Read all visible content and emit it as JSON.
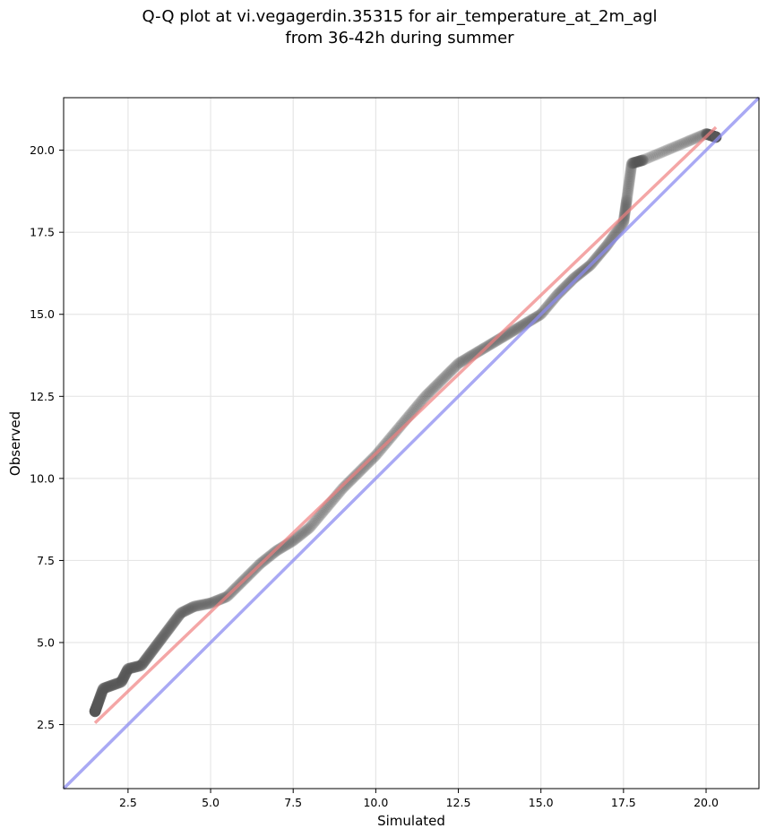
{
  "chart_data": {
    "type": "scatter",
    "title_lines": [
      "Q-Q plot at vi.vegagerdin.35315 for air_temperature_at_2m_agl",
      "from 36-42h during summer"
    ],
    "xlabel": "Simulated",
    "ylabel": "Observed",
    "xlim": [
      0.55,
      21.6
    ],
    "ylim": [
      0.55,
      21.6
    ],
    "x_ticks": [
      2.5,
      5.0,
      7.5,
      10.0,
      12.5,
      15.0,
      17.5,
      20.0
    ],
    "y_ticks": [
      2.5,
      5.0,
      7.5,
      10.0,
      12.5,
      15.0,
      17.5,
      20.0
    ],
    "x_tick_labels": [
      "2.5",
      "5.0",
      "7.5",
      "10.0",
      "12.5",
      "15.0",
      "17.5",
      "20.0"
    ],
    "y_tick_labels": [
      "2.5",
      "5.0",
      "7.5",
      "10.0",
      "12.5",
      "15.0",
      "17.5",
      "20.0"
    ],
    "grid": true,
    "colors": {
      "points": "#555555",
      "fit_line": "#f08080",
      "identity_line": "#8c8cf0",
      "grid": "#e6e6e6"
    },
    "fit_line": {
      "x": [
        1.5,
        20.3
      ],
      "y": [
        2.55,
        20.7
      ]
    },
    "identity_line": {
      "x": [
        0.55,
        21.6
      ],
      "y": [
        0.55,
        21.6
      ]
    },
    "quantile_anchors": {
      "x": [
        1.5,
        1.75,
        2.3,
        2.5,
        2.9,
        3.2,
        3.5,
        3.8,
        4.1,
        4.5,
        5.0,
        5.5,
        6.0,
        6.5,
        7.0,
        7.5,
        8.0,
        8.5,
        9.0,
        9.5,
        10.0,
        10.5,
        11.0,
        11.5,
        12.0,
        12.5,
        13.0,
        13.5,
        14.0,
        14.5,
        15.0,
        15.5,
        16.0,
        16.5,
        17.0,
        17.5,
        17.6,
        17.75,
        18.1,
        20.0,
        20.3
      ],
      "y": [
        2.9,
        3.6,
        3.8,
        4.2,
        4.3,
        4.7,
        5.1,
        5.5,
        5.9,
        6.1,
        6.2,
        6.4,
        6.9,
        7.4,
        7.8,
        8.1,
        8.5,
        9.1,
        9.7,
        10.2,
        10.7,
        11.3,
        11.9,
        12.5,
        13.0,
        13.5,
        13.8,
        14.1,
        14.4,
        14.7,
        15.0,
        15.6,
        16.1,
        16.5,
        17.1,
        17.8,
        18.5,
        19.6,
        19.7,
        20.5,
        20.4
      ]
    },
    "n_points": 900
  }
}
